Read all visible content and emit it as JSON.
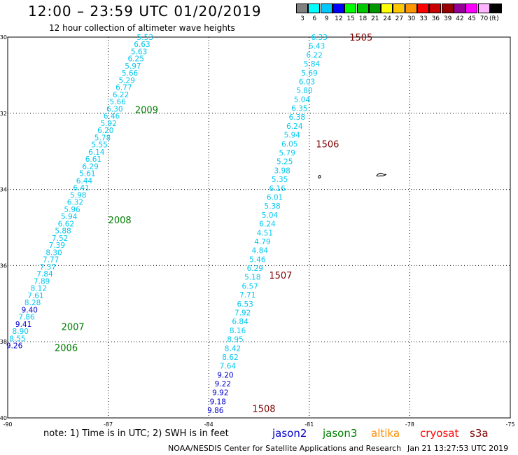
{
  "header": {
    "title": "12:00 – 23:59 UTC 01/20/2019",
    "subtitle": "12 hour collection of altimeter wave heights"
  },
  "colorbar": {
    "unit": "(ft)",
    "bins": [
      {
        "label": "3",
        "color": "#808080"
      },
      {
        "label": "6",
        "color": "#00ffff"
      },
      {
        "label": "9",
        "color": "#00c8ff"
      },
      {
        "label": "12",
        "color": "#0000ff"
      },
      {
        "label": "15",
        "color": "#00ff00"
      },
      {
        "label": "18",
        "color": "#00c800"
      },
      {
        "label": "21",
        "color": "#009600"
      },
      {
        "label": "24",
        "color": "#ffff00"
      },
      {
        "label": "27",
        "color": "#ffc800"
      },
      {
        "label": "30",
        "color": "#ff9600"
      },
      {
        "label": "33",
        "color": "#ff0000"
      },
      {
        "label": "36",
        "color": "#c80000"
      },
      {
        "label": "39",
        "color": "#960000"
      },
      {
        "label": "42",
        "color": "#960096"
      },
      {
        "label": "45",
        "color": "#ff00ff"
      },
      {
        "label": "70",
        "color": "#ffb4ff"
      },
      {
        "label": "",
        "color": "#000000"
      }
    ]
  },
  "map": {
    "lon_range": [
      -90,
      -75
    ],
    "lat_range": [
      -40,
      -30
    ],
    "lon_ticks": [
      "-90",
      "-87",
      "-84",
      "-81",
      "-78",
      "-75"
    ],
    "lat_ticks": [
      "-30",
      "-32",
      "-34",
      "-36",
      "-38",
      "-40"
    ],
    "grid_lons": [
      -87,
      -84,
      -81,
      -78
    ],
    "grid_lats": [
      -32,
      -34,
      -36,
      -38
    ]
  },
  "tracks": [
    {
      "name": "track-a",
      "start": [
        -85.9,
        -30.0
      ],
      "end": [
        -89.8,
        -38.1
      ],
      "values": [
        "5.53",
        "6.63",
        "5.63",
        "6.25",
        "5.97",
        "5.66",
        "5.29",
        "6.77",
        "6.22",
        "5.66",
        "6.30",
        "6.46",
        "5.92",
        "6.20",
        "5.78",
        "5.55",
        "6.14",
        "6.61",
        "6.29",
        "5.61",
        "6.44",
        "6.41",
        "5.98",
        "6.32",
        "5.96",
        "5.94",
        "6.62",
        "5.88",
        "7.52",
        "7.39",
        "8.30",
        "7.77",
        "7.37",
        "7.84",
        "7.89",
        "8.12",
        "7.61",
        "8.28",
        "9.40",
        "7.86",
        "9.41",
        "8.90",
        "8.55",
        "9.26"
      ]
    },
    {
      "name": "track-b",
      "start": [
        -80.7,
        -30.0
      ],
      "end": [
        -83.8,
        -39.8
      ],
      "values": [
        "6.33",
        "6.43",
        "6.22",
        "5.84",
        "5.69",
        "6.03",
        "5.80",
        "5.04",
        "6.35",
        "6.38",
        "6.24",
        "5.94",
        "6.05",
        "5.79",
        "5.25",
        "3.98",
        "5.35",
        "6.16",
        "6.01",
        "5.38",
        "5.04",
        "6.24",
        "4.51",
        "4.79",
        "4.84",
        "5.46",
        "6.29",
        "5.18",
        "6.57",
        "7.71",
        "6.53",
        "7.92",
        "6.84",
        "8.16",
        "8.95",
        "8.42",
        "8.62",
        "7.64",
        "9.20",
        "9.22",
        "9.92",
        "9.18",
        "9.86"
      ]
    }
  ],
  "pass_labels": [
    {
      "text": "1505",
      "lon": -79.8,
      "lat": -30.0,
      "color": "#800000"
    },
    {
      "text": "1506",
      "lon": -80.8,
      "lat": -32.8,
      "color": "#800000"
    },
    {
      "text": "1507",
      "lon": -82.2,
      "lat": -36.25,
      "color": "#800000"
    },
    {
      "text": "1508",
      "lon": -82.7,
      "lat": -39.75,
      "color": "#800000"
    },
    {
      "text": "2009",
      "lon": -86.2,
      "lat": -31.9,
      "color": "#008000"
    },
    {
      "text": "2008",
      "lon": -87.0,
      "lat": -34.8,
      "color": "#008000"
    },
    {
      "text": "2007",
      "lon": -88.4,
      "lat": -37.6,
      "color": "#008000"
    },
    {
      "text": "2006",
      "lon": -88.6,
      "lat": -38.15,
      "color": "#008000"
    }
  ],
  "footer": {
    "note": "note: 1) Time is in UTC; 2) SWH is in feet",
    "credit": "NOAA/NESDIS Center for Satellite Applications and Research",
    "timestamp": "Jan 21 13:27:53 UTC 2019"
  },
  "legend": [
    {
      "name": "jason2",
      "color": "#0000cd"
    },
    {
      "name": "jason3",
      "color": "#008000"
    },
    {
      "name": "altika",
      "color": "#ff8c00"
    },
    {
      "name": "cryosat",
      "color": "#ff0000"
    },
    {
      "name": "s3a",
      "color": "#800000"
    }
  ]
}
